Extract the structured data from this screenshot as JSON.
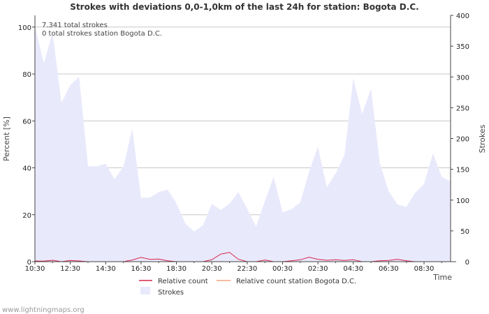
{
  "chart_data": {
    "type": "area",
    "title": "Strokes with deviations 0,0-1,0km of the last 24h for station: Bogota D.C.",
    "xlabel": "Time",
    "ylabel_left": "Percent   [%]",
    "ylabel_right": "Strokes",
    "annotations": [
      "7.341 total strokes",
      "0 total strokes station Bogota D.C."
    ],
    "x_ticks": [
      "10:30",
      "12:30",
      "14:30",
      "16:30",
      "18:30",
      "20:30",
      "22:30",
      "00:30",
      "02:30",
      "04:30",
      "06:30",
      "08:30"
    ],
    "y_left_ticks": [
      "0",
      "20",
      "40",
      "60",
      "80",
      "100"
    ],
    "y_right_ticks": [
      "0",
      "50",
      "100",
      "150",
      "200",
      "250",
      "300",
      "350",
      "400"
    ],
    "ylim_left": [
      0,
      105
    ],
    "ylim_right": [
      0,
      400
    ],
    "x_unit": "hours since 10:30",
    "xlim": [
      0,
      23.5
    ],
    "grid": true,
    "series": [
      {
        "name": "Strokes",
        "axis": "right",
        "style": "area",
        "color": "#e9e9fc",
        "x": [
          0,
          0.5,
          1,
          1.5,
          2,
          2.5,
          3,
          3.5,
          4,
          4.5,
          5,
          5.5,
          6,
          6.5,
          7,
          7.5,
          8,
          8.5,
          9,
          9.5,
          10,
          10.5,
          11,
          11.5,
          12,
          12.5,
          13,
          13.5,
          14,
          14.5,
          15,
          15.5,
          16,
          16.5,
          17,
          17.5,
          18,
          18.5,
          19,
          19.5,
          20,
          20.5,
          21,
          21.5,
          22,
          22.5,
          23,
          23.5
        ],
        "values": [
          383,
          322,
          372,
          258,
          287,
          300,
          155,
          155,
          159,
          134,
          154,
          216,
          104,
          104,
          113,
          117,
          95,
          62,
          49,
          59,
          94,
          84,
          94,
          113,
          86,
          57,
          98,
          138,
          80,
          85,
          96,
          146,
          187,
          121,
          143,
          173,
          298,
          240,
          281,
          160,
          114,
          93,
          89,
          112,
          126,
          176,
          138,
          130
        ]
      },
      {
        "name": "Relative count",
        "axis": "left",
        "style": "line",
        "color": "#d6264a",
        "x": [
          0,
          0.5,
          1,
          1.5,
          2,
          2.5,
          3,
          3.5,
          4,
          4.5,
          5,
          5.5,
          6,
          6.5,
          7,
          7.5,
          8,
          8.5,
          9,
          9.5,
          10,
          10.5,
          11,
          11.5,
          12,
          12.5,
          13,
          13.5,
          14,
          14.5,
          15,
          15.5,
          16,
          16.5,
          17,
          17.5,
          18,
          18.5,
          19,
          19.5,
          20,
          20.5,
          21,
          21.5,
          22,
          22.5,
          23,
          23.5
        ],
        "values": [
          0.3,
          0.2,
          0.6,
          0,
          0.5,
          0.3,
          0,
          0,
          0,
          0,
          0,
          0.7,
          1.8,
          1,
          1.1,
          0.4,
          0,
          0,
          0,
          0,
          0.8,
          3.2,
          4,
          1,
          0,
          0,
          0.7,
          0,
          0,
          0.4,
          0.8,
          1.9,
          1,
          0.6,
          0.8,
          0.5,
          0.8,
          0,
          0,
          0.4,
          0.5,
          1,
          0.4,
          0,
          0,
          0,
          0,
          0
        ]
      },
      {
        "name": "Relative count station Bogota D.C.",
        "axis": "left",
        "style": "line",
        "color": "#f4a27f",
        "x": [
          0,
          23.5
        ],
        "values": [
          0,
          0
        ]
      }
    ],
    "legend": [
      "Relative count",
      "Relative count station Bogota D.C.",
      "Strokes"
    ],
    "legend_placement": "bottom"
  },
  "footer": "www.lightningmaps.org"
}
